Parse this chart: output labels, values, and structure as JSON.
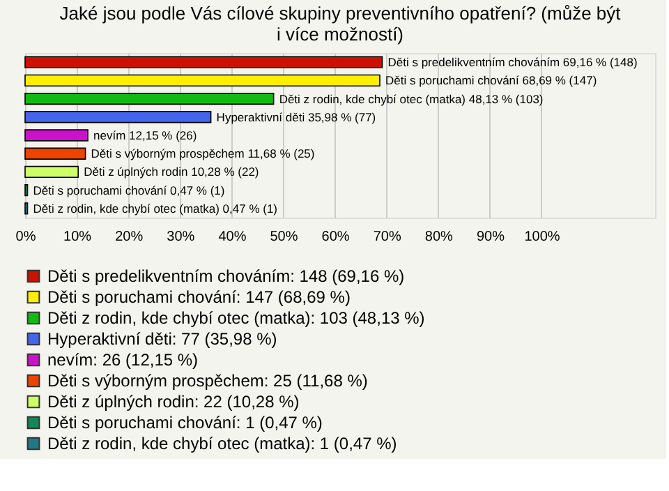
{
  "chart_data": {
    "type": "bar",
    "orientation": "horizontal",
    "title": "Jaké jsou podle Vás cílové skupiny preventivního opatření? (může být i více možností)",
    "categories": [
      null,
      null,
      null,
      null,
      null,
      null,
      null,
      null,
      null
    ],
    "series": [
      {
        "name": "Děti s predelikventním chováním: 148 (69,16 %)",
        "color": "#cc1100",
        "values": [
          69.16,
          null,
          null,
          null,
          null,
          null,
          null,
          null,
          null
        ],
        "value_labels": [
          "Děti s predelikventním chováním 69,16 % (148)",
          null,
          null,
          null,
          null,
          null,
          null,
          null,
          null
        ]
      },
      {
        "name": "Děti s poruchami chování: 147 (68,69 %)",
        "color": "#ffee00",
        "values": [
          null,
          68.69,
          null,
          null,
          null,
          null,
          null,
          null,
          null
        ],
        "value_labels": [
          null,
          "Děti s poruchami chování 68,69 % (147)",
          null,
          null,
          null,
          null,
          null,
          null,
          null
        ]
      },
      {
        "name": "Děti z rodin, kde chybí otec (matka): 103 (48,13 %)",
        "color": "#11bb11",
        "values": [
          null,
          null,
          48.13,
          null,
          null,
          null,
          null,
          null,
          null
        ],
        "value_labels": [
          null,
          null,
          "Děti z rodin, kde chybí otec (matka) 48,13 % (103)",
          null,
          null,
          null,
          null,
          null,
          null
        ]
      },
      {
        "name": "Hyperaktivní děti: 77 (35,98 %)",
        "color": "#4466ee",
        "values": [
          null,
          null,
          null,
          35.98,
          null,
          null,
          null,
          null,
          null
        ],
        "value_labels": [
          null,
          null,
          null,
          "Hyperaktivní děti 35,98 % (77)",
          null,
          null,
          null,
          null,
          null
        ]
      },
      {
        "name": "nevím: 26 (12,15 %)",
        "color": "#cc11cc",
        "values": [
          null,
          null,
          null,
          null,
          12.15,
          null,
          null,
          null,
          null
        ],
        "value_labels": [
          null,
          null,
          null,
          null,
          "nevím 12,15 % (26)",
          null,
          null,
          null,
          null
        ]
      },
      {
        "name": "Děti s výborným prospěchem: 25 (11,68 %)",
        "color": "#ee4400",
        "values": [
          null,
          null,
          null,
          null,
          null,
          11.68,
          null,
          null,
          null
        ],
        "value_labels": [
          null,
          null,
          null,
          null,
          null,
          "Děti s výborným prospěchem 11,68 % (25)",
          null,
          null,
          null
        ]
      },
      {
        "name": "Děti z úplných rodin: 22 (10,28 %)",
        "color": "#ccff66",
        "values": [
          null,
          null,
          null,
          null,
          null,
          null,
          10.28,
          null,
          null
        ],
        "value_labels": [
          null,
          null,
          null,
          null,
          null,
          null,
          "Děti z úplných rodin 10,28 % (22)",
          null,
          null
        ]
      },
      {
        "name": "Děti s poruchami chování: 1 (0,47 %)",
        "color": "#118855",
        "values": [
          null,
          null,
          null,
          null,
          null,
          null,
          null,
          0.47,
          null
        ],
        "value_labels": [
          null,
          null,
          null,
          null,
          null,
          null,
          null,
          "Děti s poruchami chování 0,47 % (1)",
          null
        ]
      },
      {
        "name": "Děti z rodin, kde chybí otec (matka): 1 (0,47 %)",
        "color": "#227788",
        "values": [
          null,
          null,
          null,
          null,
          null,
          null,
          null,
          null,
          0.47
        ],
        "value_labels": [
          null,
          null,
          null,
          null,
          null,
          null,
          null,
          null,
          "Děti z rodin, kde chybí otec (matka) 0,47 % (1)"
        ]
      }
    ],
    "xlim": [
      0,
      122
    ],
    "xticks": [
      {
        "value": 0,
        "label": "0%"
      },
      {
        "value": 10,
        "label": "10%"
      },
      {
        "value": 20,
        "label": "20%"
      },
      {
        "value": 30,
        "label": "30%"
      },
      {
        "value": 40,
        "label": "40%"
      },
      {
        "value": 50,
        "label": "50%"
      },
      {
        "value": 60,
        "label": "60%"
      },
      {
        "value": 70,
        "label": "70%"
      },
      {
        "value": 80,
        "label": "80%"
      },
      {
        "value": 90,
        "label": "90%"
      },
      {
        "value": 100,
        "label": "100%"
      }
    ],
    "grid": "x",
    "legend": "bottom"
  }
}
